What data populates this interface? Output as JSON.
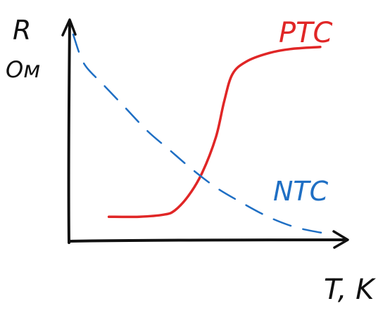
{
  "chart_data": {
    "type": "line",
    "ylabel": "R",
    "yunit": "Ом",
    "xlabel": "T, K",
    "series": [
      {
        "name": "PTC",
        "color": "#e02626",
        "style": "solid",
        "points": [
          [
            0.14,
            0.1
          ],
          [
            0.25,
            0.1
          ],
          [
            0.34,
            0.11
          ],
          [
            0.38,
            0.13
          ],
          [
            0.43,
            0.2
          ],
          [
            0.48,
            0.31
          ],
          [
            0.53,
            0.48
          ],
          [
            0.56,
            0.65
          ],
          [
            0.59,
            0.78
          ],
          [
            0.64,
            0.84
          ],
          [
            0.72,
            0.88
          ],
          [
            0.8,
            0.9
          ],
          [
            0.91,
            0.91
          ]
        ]
      },
      {
        "name": "NTC",
        "color": "#1f6fc4",
        "style": "dashed",
        "points": [
          [
            0.01,
            0.97
          ],
          [
            0.05,
            0.83
          ],
          [
            0.12,
            0.73
          ],
          [
            0.2,
            0.62
          ],
          [
            0.28,
            0.51
          ],
          [
            0.36,
            0.42
          ],
          [
            0.44,
            0.33
          ],
          [
            0.53,
            0.24
          ],
          [
            0.62,
            0.17
          ],
          [
            0.72,
            0.1
          ],
          [
            0.82,
            0.05
          ],
          [
            0.93,
            0.02
          ]
        ]
      }
    ],
    "xlim": [
      0,
      1
    ],
    "ylim": [
      0,
      1
    ],
    "grid": false,
    "legend": "none"
  }
}
